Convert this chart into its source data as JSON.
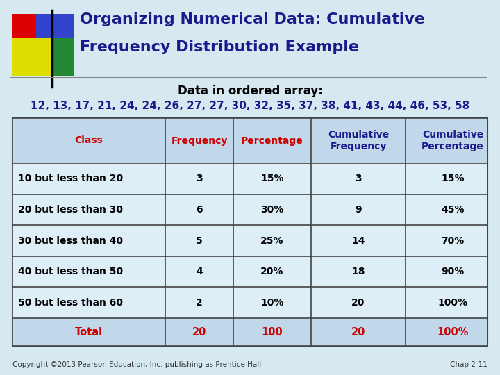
{
  "title_line1": "Organizing Numerical Data: Cumulative",
  "title_line2": "Frequency Distribution Example",
  "title_color": "#1a1a8c",
  "subtitle": "Data in ordered array:",
  "subtitle_color": "#000000",
  "array_data": "12, 13, 17, 21, 24, 24, 26, 27, 27, 30, 32, 35, 37, 38, 41, 43, 44, 46, 53, 58",
  "array_color": "#1a1a8c",
  "bg_color": "#d6e8f0",
  "header_bg": "#c0d8ea",
  "table_bg": "#ddeef7",
  "table_border_color": "#444444",
  "header_text_color_class": "#cc0000",
  "header_text_color_freq": "#cc0000",
  "header_text_color_cum": "#1a1a8c",
  "data_text_color": "#000000",
  "total_text_color": "#cc0000",
  "col_headers": [
    "Class",
    "Frequency",
    "Percentage",
    "Cumulative\nFrequency",
    "Cumulative\nPercentage"
  ],
  "rows": [
    [
      "10 but less than 20",
      "3",
      "15%",
      "3",
      "15%"
    ],
    [
      "20 but less than 30",
      "6",
      "30%",
      "9",
      "45%"
    ],
    [
      "30 but less than 40",
      "5",
      "25%",
      "14",
      "70%"
    ],
    [
      "40 but less than 50",
      "4",
      "20%",
      "18",
      "90%"
    ],
    [
      "50 but less than 60",
      "2",
      "10%",
      "20",
      "100%"
    ]
  ],
  "total_row": [
    "Total",
    "20",
    "100",
    "20",
    "100%"
  ],
  "copyright": "Copyright ©2013 Pearson Education, Inc. publishing as Prentice Hall",
  "chap": "Chap 2-11",
  "dec_red": "#dd0000",
  "dec_blue": "#3344cc",
  "dec_green": "#228833",
  "dec_yellow": "#dddd00"
}
